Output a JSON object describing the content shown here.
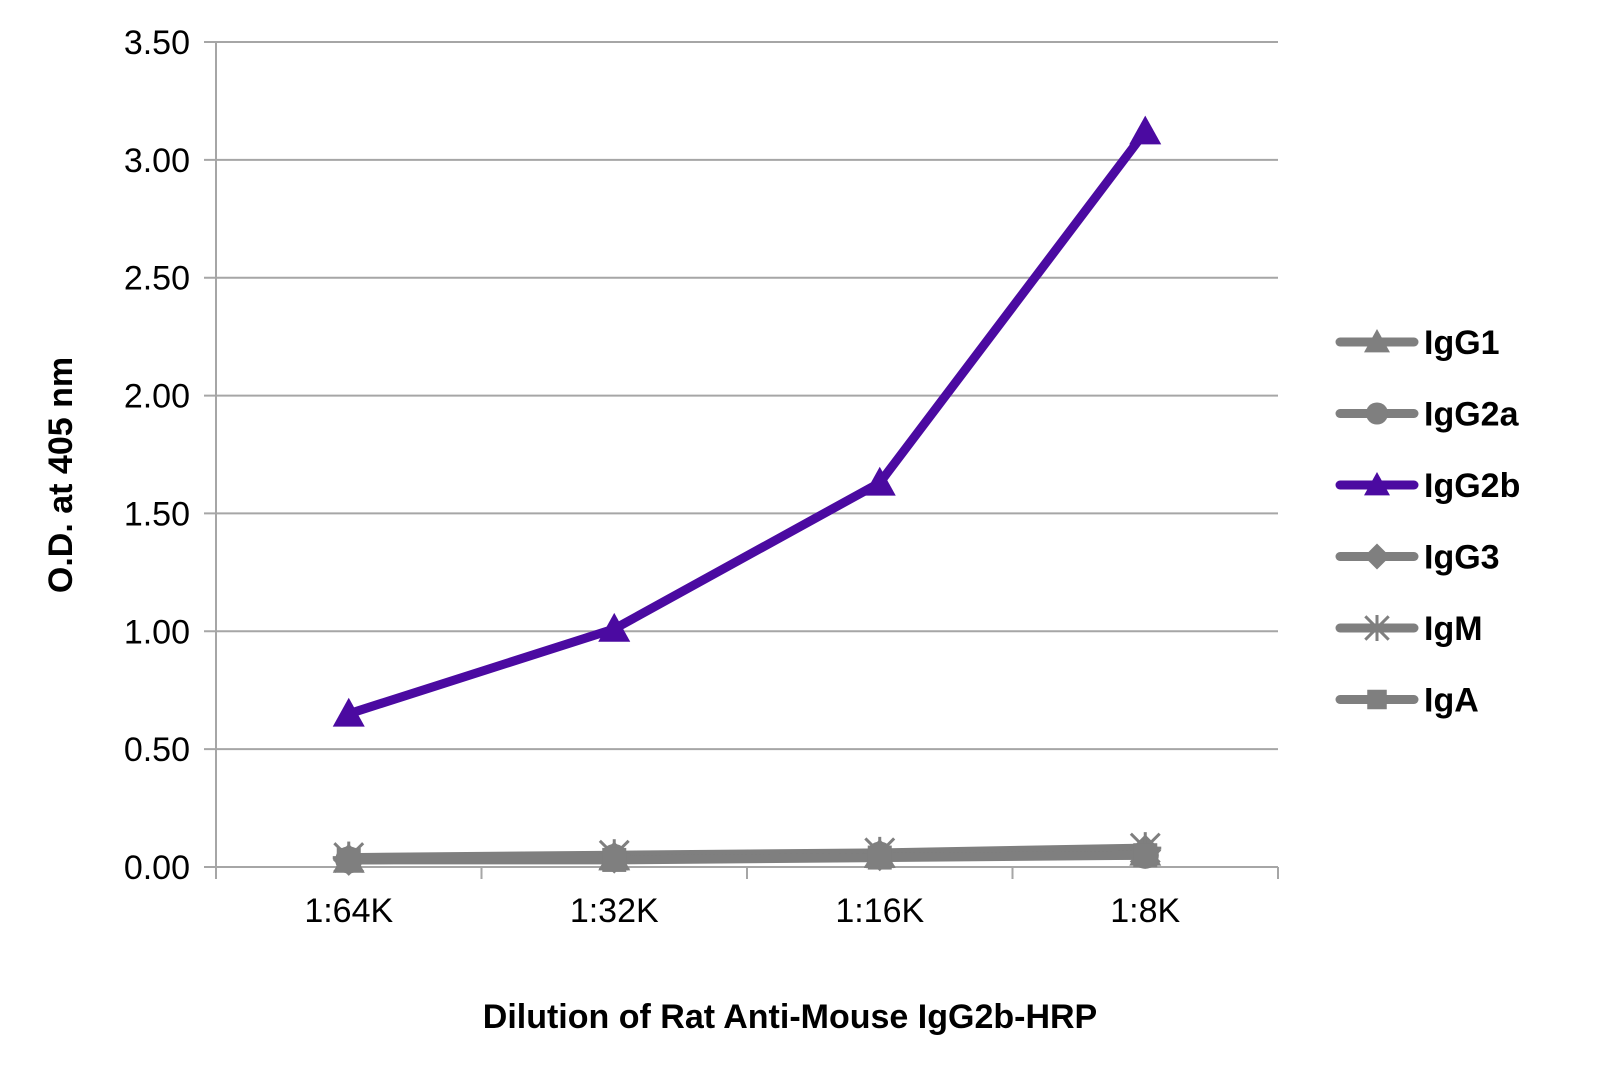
{
  "chart_data": {
    "type": "line",
    "categories": [
      "1:64K",
      "1:32K",
      "1:16K",
      "1:8K"
    ],
    "series": [
      {
        "name": "IgG1",
        "values": [
          0.03,
          0.04,
          0.05,
          0.06
        ],
        "color": "#7f7f7f",
        "marker": "triangle"
      },
      {
        "name": "IgG2a",
        "values": [
          0.03,
          0.04,
          0.05,
          0.05
        ],
        "color": "#7f7f7f",
        "marker": "circle"
      },
      {
        "name": "IgG2b",
        "values": [
          0.65,
          1.01,
          1.63,
          3.12
        ],
        "color": "#4b0aa1",
        "marker": "triangle"
      },
      {
        "name": "IgG3",
        "values": [
          0.03,
          0.04,
          0.05,
          0.07
        ],
        "color": "#7f7f7f",
        "marker": "diamond"
      },
      {
        "name": "IgM",
        "values": [
          0.04,
          0.05,
          0.06,
          0.08
        ],
        "color": "#7f7f7f",
        "marker": "star"
      },
      {
        "name": "IgA",
        "values": [
          0.03,
          0.03,
          0.04,
          0.05
        ],
        "color": "#7f7f7f",
        "marker": "square"
      }
    ],
    "y_ticks": [
      "0.00",
      "0.50",
      "1.00",
      "1.50",
      "2.00",
      "2.50",
      "3.00",
      "3.50"
    ],
    "ylim": [
      0,
      3.5
    ],
    "ylabel": "O.D. at 405 nm",
    "xlabel": "Dilution of Rat Anti-Mouse IgG2b-HRP",
    "grid": "horizontal",
    "legend_position": "right"
  }
}
